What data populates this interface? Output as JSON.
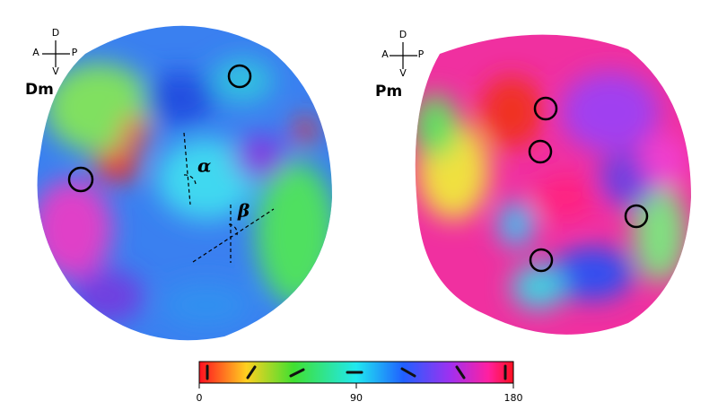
{
  "panels": [
    {
      "compass": {
        "dorsal": "D",
        "anterior": "A",
        "posterior": "P",
        "ventral": "V"
      },
      "label": "Dm",
      "angles": [
        "α",
        "β"
      ]
    },
    {
      "compass": {
        "dorsal": "D",
        "anterior": "A",
        "posterior": "P",
        "ventral": "V"
      },
      "label": "Pm"
    }
  ],
  "colorbar": {
    "lim": [
      0,
      180
    ],
    "ticks": [
      0,
      90,
      180
    ]
  }
}
